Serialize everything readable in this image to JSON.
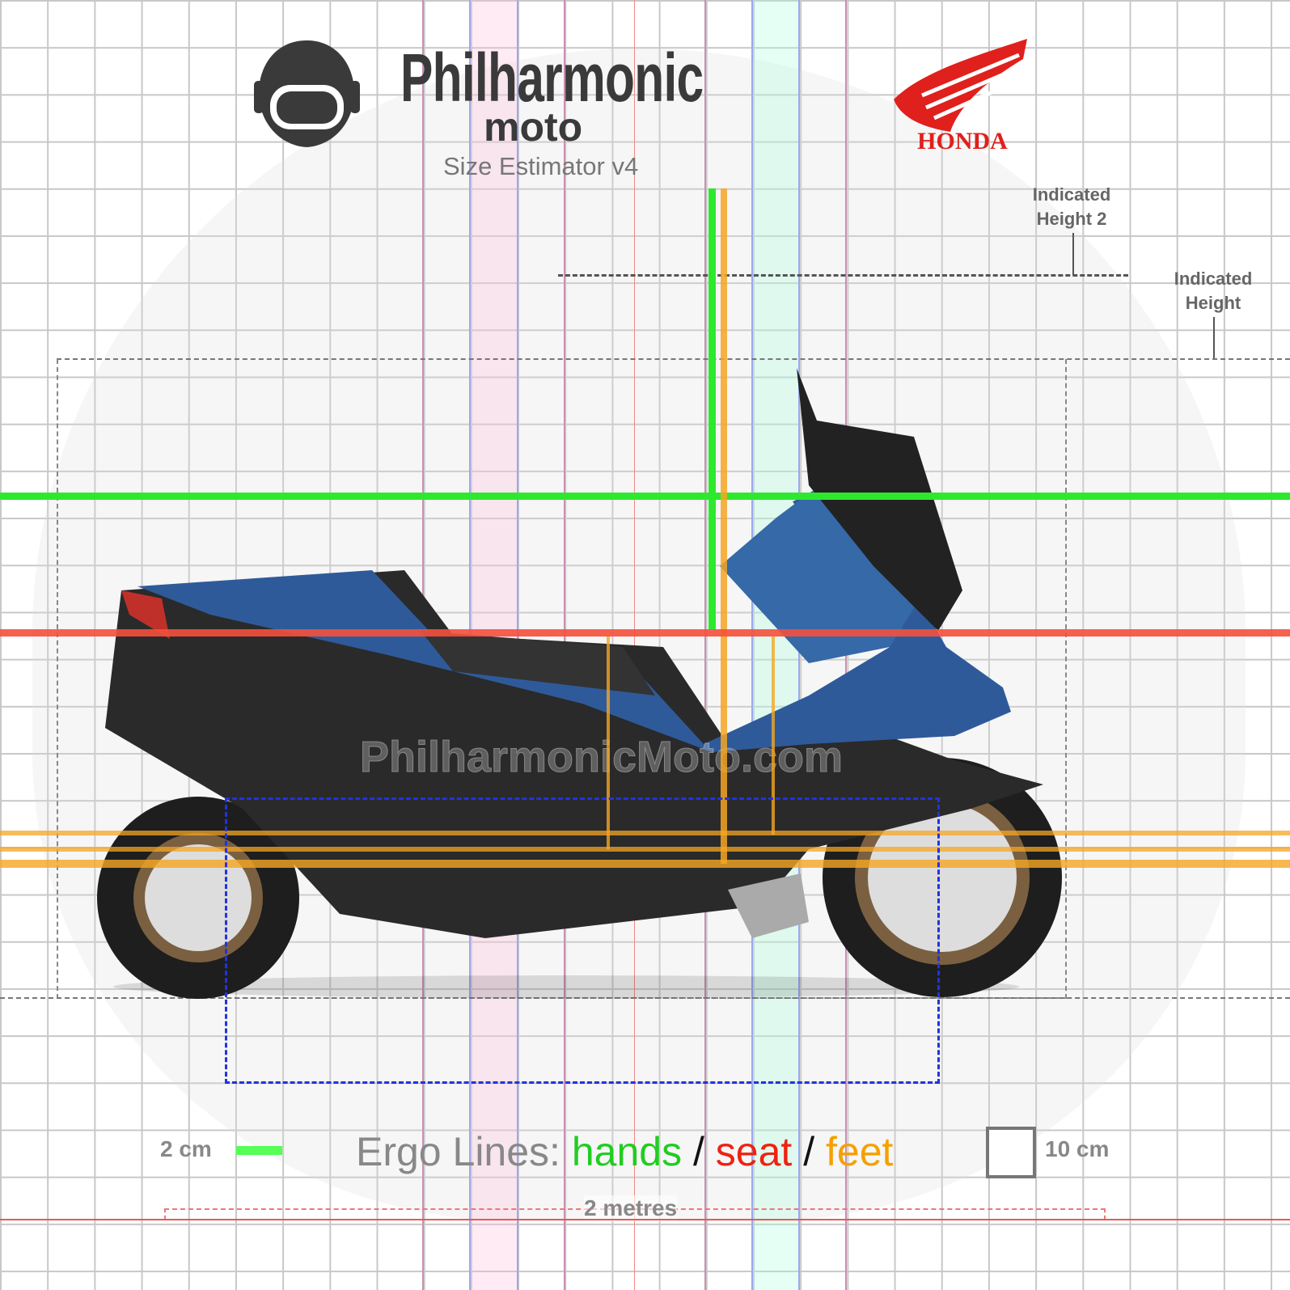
{
  "header": {
    "brand_title": "Philharmonic",
    "brand_moto": "moto",
    "subtitle": "Size Estimator v4",
    "manufacturer_logo": "HONDA"
  },
  "labels": {
    "indicated_height_2": "Indicated Height 2",
    "indicated_height": "Indicated Height"
  },
  "watermark": "PhilharmonicMoto.com",
  "legend": {
    "scale_2cm": "2 cm",
    "ergo_prefix": "Ergo Lines:",
    "hands": "hands",
    "seat": "seat",
    "feet": "feet",
    "sep": "/",
    "scale_10cm": "10 cm",
    "scale_2m": "2 metres"
  },
  "colors": {
    "hands": "#22cc22",
    "seat": "#ee3322",
    "feet": "#f5a623",
    "bike_blue": "#2f5a9a",
    "honda_red": "#e0201c"
  }
}
